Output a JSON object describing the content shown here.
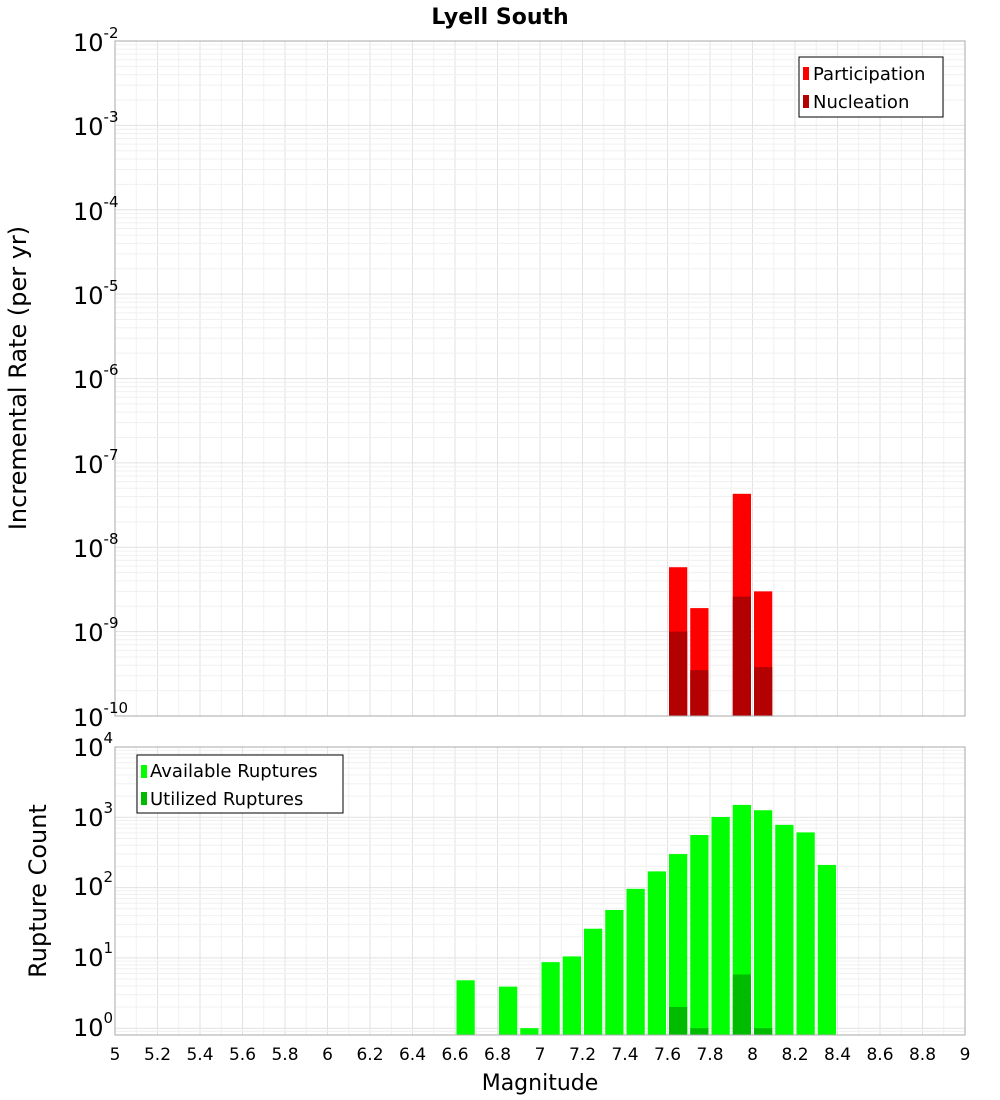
{
  "chart_data": [
    {
      "type": "bar",
      "title": "Lyell South",
      "ylabel": "Incremental Rate (per yr)",
      "xlabel": "",
      "xlim": [
        5,
        9
      ],
      "ylim": [
        1e-10,
        0.01
      ],
      "yscale": "log",
      "bar_width": 0.1,
      "grid": true,
      "legend_position": "top-right",
      "ytick_exponents": [
        "-2",
        "-3",
        "-4",
        "-5",
        "-6",
        "-7",
        "-8",
        "-9",
        "-10"
      ],
      "series": [
        {
          "name": "Participation",
          "color": "#ff0000",
          "x": [
            7.65,
            7.75,
            7.95,
            8.05
          ],
          "values": [
            5.8e-09,
            1.9e-09,
            4.3e-08,
            3e-09
          ]
        },
        {
          "name": "Nucleation",
          "color": "#b30000",
          "x": [
            7.65,
            7.75,
            7.95,
            8.05
          ],
          "values": [
            1e-09,
            3.5e-10,
            2.6e-09,
            3.8e-10
          ]
        }
      ]
    },
    {
      "type": "bar",
      "title": "",
      "ylabel": "Rupture Count",
      "xlabel": "Magnitude",
      "xlim": [
        5,
        9
      ],
      "ylim": [
        0.8,
        10000.0
      ],
      "yscale": "log",
      "bar_width": 0.1,
      "grid": true,
      "legend_position": "top-left",
      "ytick_exponents": [
        "4",
        "3",
        "2",
        "1",
        "0"
      ],
      "xticks": [
        "5",
        "5.2",
        "5.4",
        "5.6",
        "5.8",
        "6",
        "6.2",
        "6.4",
        "6.6",
        "6.8",
        "7",
        "7.2",
        "7.4",
        "7.6",
        "7.8",
        "8",
        "8.2",
        "8.4",
        "8.6",
        "8.8",
        "9"
      ],
      "series": [
        {
          "name": "Available Ruptures",
          "color": "#00ff00",
          "x": [
            6.65,
            6.85,
            6.95,
            7.05,
            7.15,
            7.25,
            7.35,
            7.45,
            7.55,
            7.65,
            7.75,
            7.85,
            7.95,
            8.05,
            8.15,
            8.25,
            8.35
          ],
          "values": [
            4.8,
            3.9,
            1.0,
            8.7,
            10.5,
            26,
            48,
            96,
            170,
            300,
            560,
            1010,
            1500,
            1260,
            780,
            610,
            210
          ]
        },
        {
          "name": "Utilized Ruptures",
          "color": "#00bb00",
          "x": [
            7.65,
            7.75,
            7.95,
            8.05
          ],
          "values": [
            2.0,
            1.0,
            5.8,
            1.0
          ]
        }
      ]
    }
  ]
}
